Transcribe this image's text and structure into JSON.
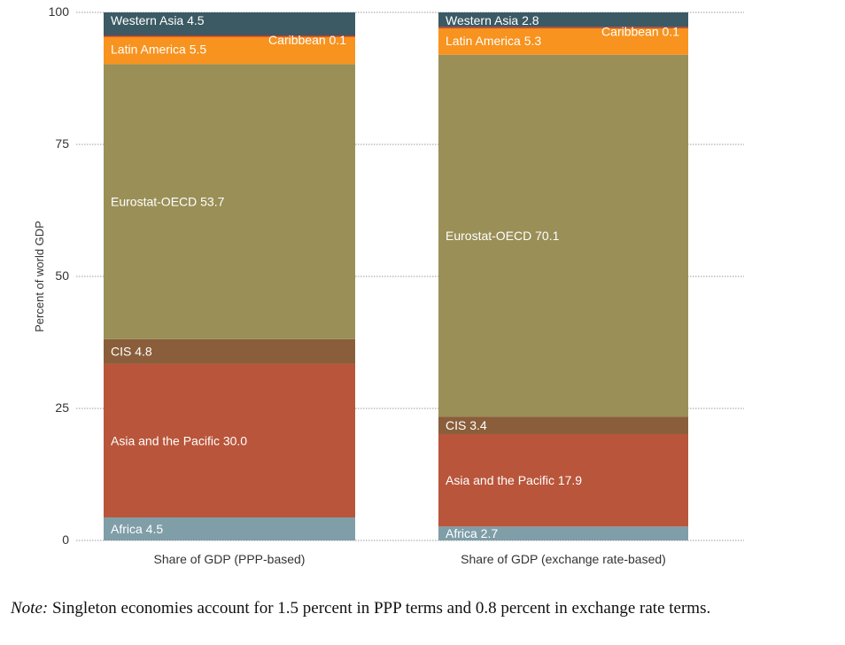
{
  "chart_data": {
    "type": "bar",
    "stacked": true,
    "ylabel": "Percent of world GDP",
    "ylim": [
      0,
      100
    ],
    "yticks": [
      0,
      25,
      50,
      75,
      100
    ],
    "grid": true,
    "categories": [
      "Share of GDP (PPP-based)",
      "Share of GDP (exchange rate-based)"
    ],
    "series": [
      {
        "name": "Africa",
        "color": "#7f9ea8",
        "values": [
          4.5,
          2.7
        ]
      },
      {
        "name": "Asia and the Pacific",
        "color": "#b9553a",
        "values": [
          30.0,
          17.9
        ]
      },
      {
        "name": "CIS",
        "color": "#8a5e3b",
        "values": [
          4.8,
          3.4
        ]
      },
      {
        "name": "Eurostat-OECD",
        "color": "#9a8f57",
        "values": [
          53.7,
          70.1
        ]
      },
      {
        "name": "Latin America",
        "color": "#f7931e",
        "values": [
          5.5,
          5.3
        ]
      },
      {
        "name": "Caribbean",
        "color": "#c0392b",
        "values": [
          0.1,
          0.1
        ]
      },
      {
        "name": "Western Asia",
        "color": "#3b5a64",
        "values": [
          4.5,
          2.8
        ]
      }
    ],
    "segment_labels": [
      [
        "Africa 4.5",
        "Asia and the Pacific 30.0",
        "CIS 4.8",
        "Eurostat-OECD 53.7",
        "Latin America 5.5",
        "Caribbean 0.1",
        "Western Asia 4.5"
      ],
      [
        "Africa 2.7",
        "Asia and the Pacific 17.9",
        "CIS 3.4",
        "Eurostat-OECD 70.1",
        "Latin America 5.3",
        "Caribbean 0.1",
        "Western Asia 2.8"
      ]
    ]
  },
  "note": {
    "prefix": "Note:",
    "text": " Singleton economies account for 1.5 percent in PPP terms and 0.8 percent in exchange rate terms."
  }
}
